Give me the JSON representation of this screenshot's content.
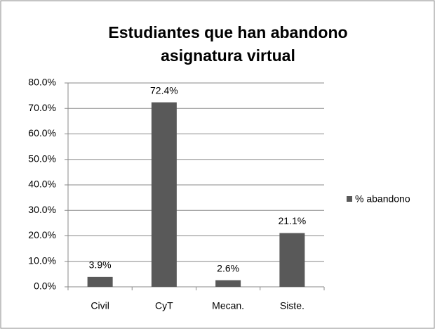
{
  "chart_data": {
    "type": "bar",
    "title": "Estudiantes que han abandono asignatura virtual",
    "categories": [
      "Civil",
      "CyT",
      "Mecan.",
      "Siste."
    ],
    "series": [
      {
        "name": "% abandono",
        "color": "#595959",
        "values": [
          3.9,
          72.4,
          2.6,
          21.1
        ],
        "value_labels": [
          "3.9%",
          "72.4%",
          "2.6%",
          "21.1%"
        ]
      }
    ],
    "ylim": [
      0,
      80
    ],
    "yticks": [
      {
        "value": 0,
        "label": "0.0%"
      },
      {
        "value": 10,
        "label": "10.0%"
      },
      {
        "value": 20,
        "label": "20.0%"
      },
      {
        "value": 30,
        "label": "30.0%"
      },
      {
        "value": 40,
        "label": "40.0%"
      },
      {
        "value": 50,
        "label": "50.0%"
      },
      {
        "value": 60,
        "label": "60.0%"
      },
      {
        "value": 70,
        "label": "70.0%"
      },
      {
        "value": 80,
        "label": "80.0%"
      }
    ],
    "grid": true,
    "legend": "right"
  }
}
